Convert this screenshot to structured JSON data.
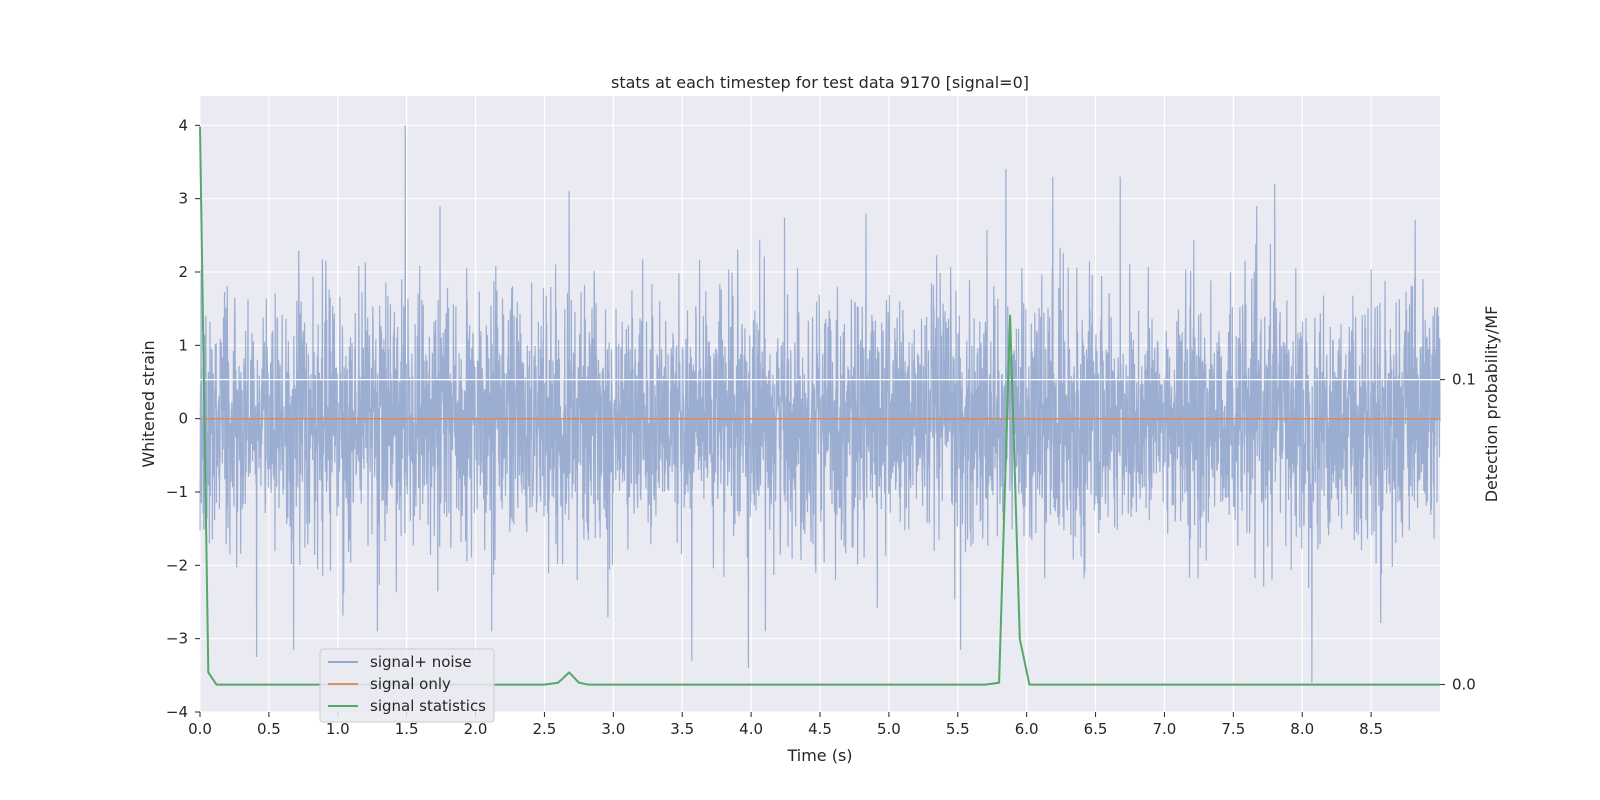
{
  "chart_data": {
    "type": "line",
    "title": "stats at each timestep for test data 9170 [signal=0]",
    "xlabel": "Time (s)",
    "ylabel": "Whitened strain",
    "ylabel_right": "Detection probability/MF",
    "xlim": [
      0.0,
      9.0
    ],
    "ylim": [
      -4.0,
      4.4
    ],
    "ylim_right": [
      -0.009,
      0.193
    ],
    "x_ticks": [
      "0.0",
      "0.5",
      "1.0",
      "1.5",
      "2.0",
      "2.5",
      "3.0",
      "3.5",
      "4.0",
      "4.5",
      "5.0",
      "5.5",
      "6.0",
      "6.5",
      "7.0",
      "7.5",
      "8.0",
      "8.5"
    ],
    "y_ticks": [
      "4",
      "3",
      "2",
      "1",
      "0",
      "−1",
      "−2",
      "−3",
      "−4"
    ],
    "y_ticks_right": [
      "0.1",
      "0.0"
    ],
    "grid": true,
    "legend_position": "lower-left",
    "background": "#eaeaf2",
    "colors": {
      "signal_noise": "#4c72b0",
      "signal_only": "#dd8452",
      "signal_statistics": "#55a868"
    },
    "series": [
      {
        "name": "signal+ noise",
        "axis": "left",
        "description_values": "dense whitened noise, approx. 7 samples per 0.01 s, values mostly within [-2.5, 2.5]",
        "notable_peaks": [
          {
            "x": 1.49,
            "y": 4.0
          },
          {
            "x": 2.68,
            "y": 3.1
          },
          {
            "x": 5.85,
            "y": 3.4
          },
          {
            "x": 6.19,
            "y": 3.3
          },
          {
            "x": 6.68,
            "y": 3.3
          },
          {
            "x": 7.8,
            "y": 3.2
          },
          {
            "x": 8.07,
            "y": -3.6
          },
          {
            "x": 3.57,
            "y": -3.3
          },
          {
            "x": 3.98,
            "y": -3.4
          },
          {
            "x": 0.41,
            "y": -3.25
          },
          {
            "x": 0.68,
            "y": -3.15
          },
          {
            "x": 5.52,
            "y": -3.15
          }
        ]
      },
      {
        "name": "signal only",
        "axis": "left",
        "x": [
          0.0,
          9.0
        ],
        "y": [
          0.0,
          0.0
        ]
      },
      {
        "name": "signal statistics",
        "axis": "right",
        "x": [
          0.0,
          0.06,
          0.12,
          0.2,
          2.5,
          2.6,
          2.68,
          2.75,
          2.82,
          5.7,
          5.8,
          5.88,
          5.95,
          6.02,
          6.1,
          9.0
        ],
        "y": [
          0.183,
          0.004,
          0.0,
          0.0,
          0.0,
          0.0006,
          0.004,
          0.0006,
          0.0,
          0.0,
          0.0006,
          0.121,
          0.015,
          0.0,
          0.0,
          0.0
        ]
      }
    ]
  }
}
